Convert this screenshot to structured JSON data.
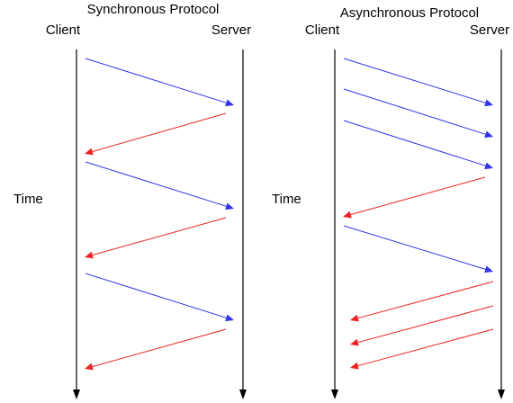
{
  "colors": {
    "request": "#3333ee",
    "response": "#ee2222",
    "timeline": "#000000"
  },
  "synchronous": {
    "title": "Synchronous Protocol",
    "client_label": "Client",
    "server_label": "Server",
    "time_label": "Time"
  },
  "asynchronous": {
    "title": "Asynchronous Protocol",
    "client_label": "Client",
    "server_label": "Server",
    "time_label": "Time"
  }
}
